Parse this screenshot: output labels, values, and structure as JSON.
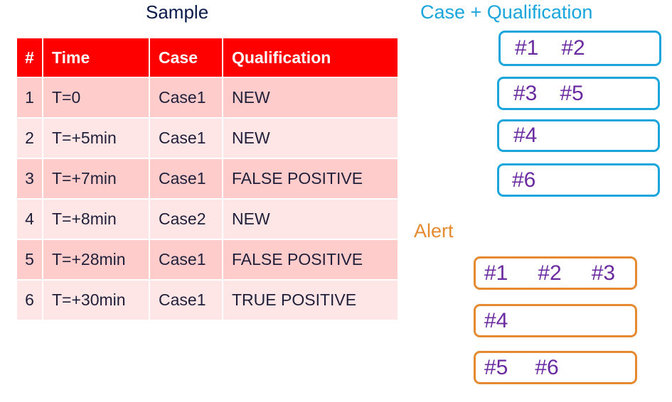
{
  "sample": {
    "title": "Sample",
    "headers": [
      "#",
      "Time",
      "Case",
      "Qualification"
    ],
    "rows": [
      [
        "1",
        "T=0",
        "Case1",
        "NEW"
      ],
      [
        "2",
        "T=+5min",
        "Case1",
        "NEW"
      ],
      [
        "3",
        "T=+7min",
        "Case1",
        "FALSE POSITIVE"
      ],
      [
        "4",
        "T=+8min",
        "Case2",
        "NEW"
      ],
      [
        "5",
        "T=+28min",
        "Case1",
        "FALSE POSITIVE"
      ],
      [
        "6",
        "T=+30min",
        "Case1",
        "TRUE POSITIVE"
      ]
    ]
  },
  "case_qualification": {
    "title": "Case + Qualification",
    "groups": [
      [
        "#1",
        "#2"
      ],
      [
        "#3",
        "#5"
      ],
      [
        "#4"
      ],
      [
        "#6"
      ]
    ]
  },
  "alert": {
    "title": "Alert",
    "groups": [
      [
        "#1",
        "#2",
        "#3"
      ],
      [
        "#4"
      ],
      [
        "#5",
        "#6"
      ]
    ]
  },
  "colors": {
    "header_red": "#ff0000",
    "row_odd": "#ffcccc",
    "row_even": "#ffe6e6",
    "case_blue": "#1aa6dc",
    "alert_orange": "#e58a30",
    "id_purple": "#6a2aa0"
  }
}
